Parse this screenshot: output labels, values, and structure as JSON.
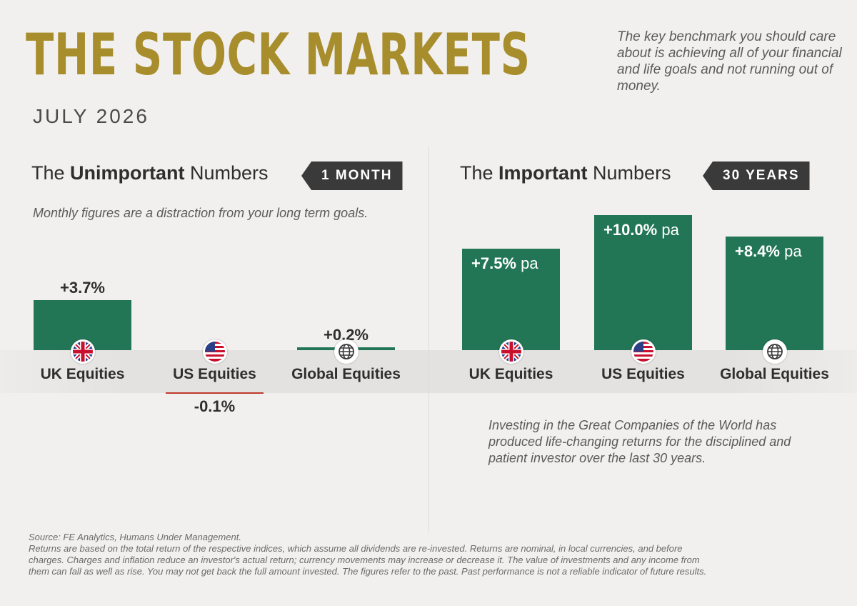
{
  "header": {
    "title": "THE STOCK MARKETS",
    "subtitle": "JULY 2026",
    "intro": "The key benchmark you should care about is achieving all of your financial and life goals and not running out of money."
  },
  "left_panel": {
    "heading_pre": "The ",
    "heading_bold": "Unimportant",
    "heading_post": " Numbers",
    "tag": "1 MONTH",
    "note": "Monthly figures are a distraction from your long term goals."
  },
  "right_panel": {
    "heading_pre": "The ",
    "heading_bold": "Important",
    "heading_post": " Numbers",
    "tag": "30 YEARS",
    "note": "Investing in the Great Companies of the World has produced life-changing returns for the disciplined and patient investor over the last 30 years."
  },
  "footer": {
    "source": "Source: FE Analytics, Humans Under Management.",
    "disclaimer": "Returns are based on the total return of the respective indices, which assume all dividends are re-invested. Returns are nominal, in local currencies, and before charges. Charges and inflation reduce an investor's actual return; currency movements may increase or decrease it. The value of investments and any income from them can fall as well as rise. You may not get back the full amount invested. The figures refer to the past. Past performance is not a reliable indicator of future results."
  },
  "colors": {
    "title": "#a88d2c",
    "bar": "#227656",
    "negative": "#c0392b",
    "tag_bg": "#3a3a3a",
    "background": "#f1f0ee"
  },
  "chart_data": [
    {
      "type": "bar",
      "categories": [
        "UK Equities",
        "US Equities",
        "Global Equities"
      ],
      "icons": [
        "uk-flag-icon",
        "us-flag-icon",
        "globe-icon"
      ],
      "values": [
        3.7,
        -0.1,
        0.2
      ],
      "labels": [
        "+3.7%",
        "-0.1%",
        "+0.2%"
      ],
      "unit": "%"
    },
    {
      "type": "bar",
      "categories": [
        "UK Equities",
        "US Equities",
        "Global Equities"
      ],
      "icons": [
        "uk-flag-icon",
        "us-flag-icon",
        "globe-icon"
      ],
      "values": [
        7.5,
        10.0,
        8.4
      ],
      "labels": [
        "+7.5%",
        "+10.0%",
        "+8.4%"
      ],
      "label_suffix": " pa",
      "unit": "% pa"
    }
  ]
}
